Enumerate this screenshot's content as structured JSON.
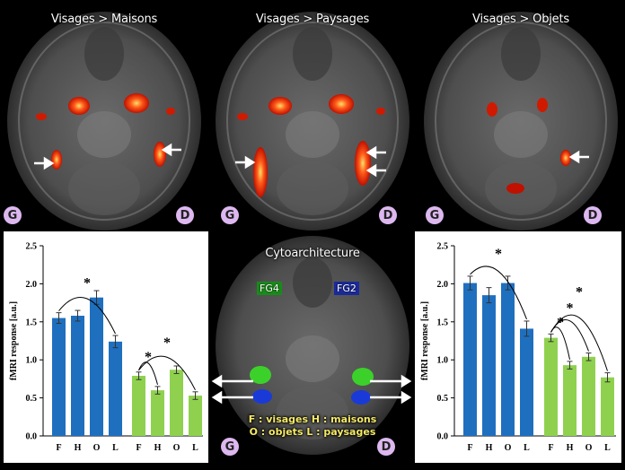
{
  "panels": [
    {
      "title": "Visages > Maisons",
      "left": "G",
      "right": "D"
    },
    {
      "title": "Visages > Paysages",
      "left": "G",
      "right": "D"
    },
    {
      "title": "Visages > Objets",
      "left": "G",
      "right": "D"
    }
  ],
  "cyto": {
    "title": "Cytoarchitecture",
    "fg4": "FG4",
    "fg2": "FG2",
    "legend_line1": "F : visages  H : maisons",
    "legend_line2": "O : objets  L : paysages",
    "left": "G",
    "right": "D"
  },
  "chart_data": [
    {
      "type": "bar",
      "ylabel": "fMRI response [a.u.]",
      "ylim": [
        0,
        2.5
      ],
      "yticks": [
        "0.0",
        "0.5",
        "1.0",
        "1.5",
        "2.0",
        "2.5"
      ],
      "categories": [
        "F",
        "H",
        "O",
        "L"
      ],
      "series": [
        {
          "color": "#1f6fbf",
          "values": [
            1.55,
            1.58,
            1.82,
            1.24
          ],
          "err": [
            0.07,
            0.07,
            0.09,
            0.08
          ]
        },
        {
          "color": "#8fd14f",
          "values": [
            0.79,
            0.6,
            0.87,
            0.53
          ],
          "err": [
            0.05,
            0.05,
            0.05,
            0.05
          ]
        }
      ],
      "significance": "*"
    },
    {
      "type": "bar",
      "ylabel": "fMRI response [a.u.]",
      "ylim": [
        0,
        2.5
      ],
      "yticks": [
        "0.0",
        "0.5",
        "1.0",
        "1.5",
        "2.0",
        "2.5"
      ],
      "categories": [
        "F",
        "H",
        "O",
        "L"
      ],
      "series": [
        {
          "color": "#1f6fbf",
          "values": [
            2.01,
            1.85,
            2.01,
            1.41
          ],
          "err": [
            0.09,
            0.1,
            0.09,
            0.1
          ]
        },
        {
          "color": "#8fd14f",
          "values": [
            1.29,
            0.93,
            1.04,
            0.77
          ],
          "err": [
            0.05,
            0.05,
            0.05,
            0.06
          ]
        }
      ],
      "significance": "*"
    }
  ]
}
